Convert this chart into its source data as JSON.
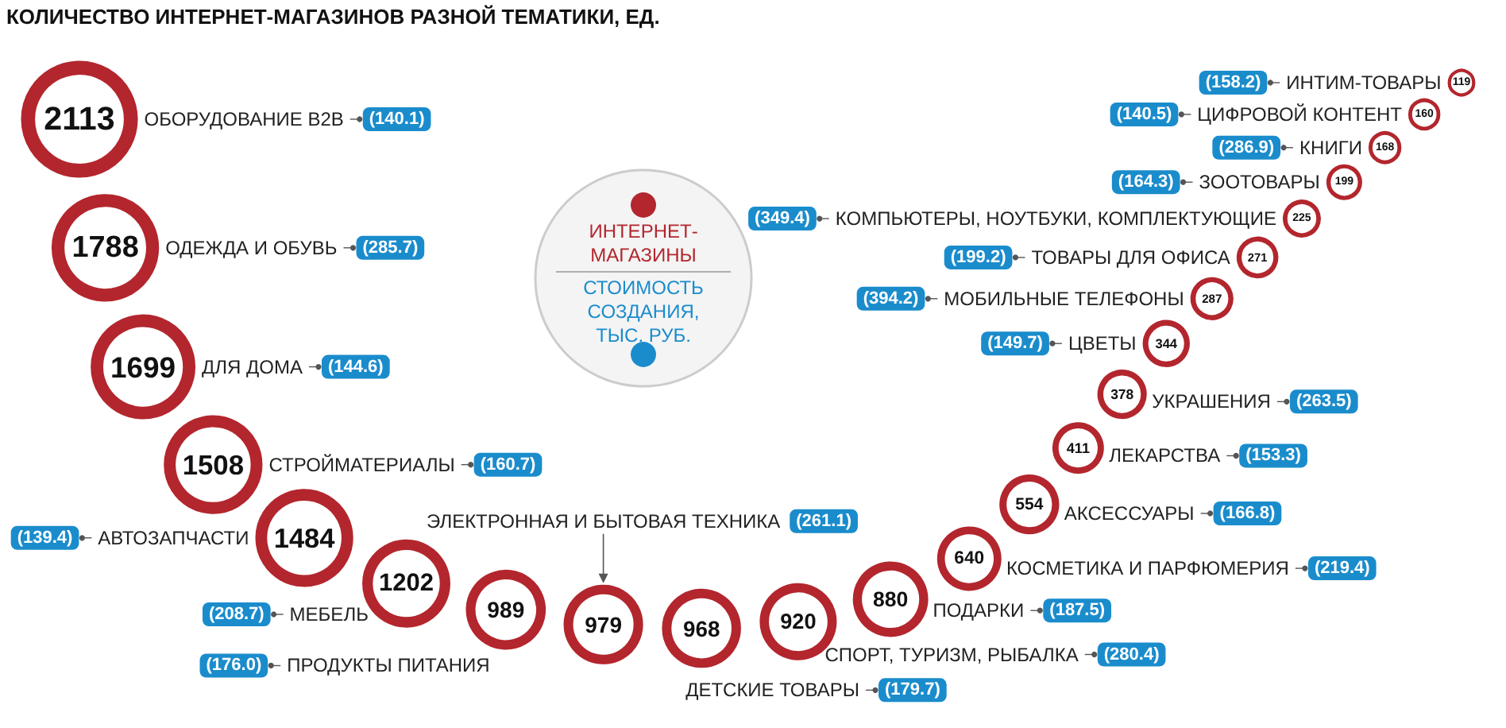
{
  "chart_data": {
    "type": "other",
    "title": "КОЛИЧЕСТВО ИНТЕРНЕТ-МАГАЗИНОВ РАЗНОЙ ТЕМАТИКИ, ЕД.",
    "legend": "top",
    "data_labels": true,
    "categories": [
      "ОБОРУДОВАНИЕ B2B",
      "ОДЕЖДА И ОБУВЬ",
      "ДЛЯ ДОМА",
      "СТРОЙМАТЕРИАЛЫ",
      "АВТОЗАПЧАСТИ",
      "МЕБЕЛЬ",
      "ПРОДУКТЫ ПИТАНИЯ",
      "ЭЛЕКТРОННАЯ И БЫТОВАЯ ТЕХНИКА",
      "ДЕТСКИЕ ТОВАРЫ",
      "СПОРТ, ТУРИЗМ, РЫБАЛКА",
      "ПОДАРКИ",
      "КОСМЕТИКА И ПАРФЮМЕРИЯ",
      "АКСЕССУАРЫ",
      "ЛЕКАРСТВА",
      "УКРАШЕНИЯ",
      "ЦВЕТЫ",
      "МОБИЛЬНЫЕ ТЕЛЕФОНЫ",
      "ТОВАРЫ ДЛЯ ОФИСА",
      "КОМПЬЮТЕРЫ, НОУТБУКИ, КОМПЛЕКТУЮЩИЕ",
      "ЗООТОВАРЫ",
      "КНИГИ",
      "ЦИФРОВОЙ КОНТЕНТ",
      "ИНТИМ-ТОВАРЫ"
    ],
    "series": [
      {
        "name": "ИНТЕРНЕТ-\nМАГАЗИНЫ",
        "color": "#b3262d",
        "values": [
          2113,
          1788,
          1699,
          1508,
          1484,
          1202,
          989,
          979,
          968,
          920,
          880,
          640,
          554,
          411,
          378,
          344,
          287,
          271,
          225,
          199,
          168,
          160,
          119
        ]
      },
      {
        "name": "СТОИМОСТЬ\nСОЗДАНИЯ,\nТЫС. РУБ.",
        "color": "#1a8ccc",
        "values": [
          140.1,
          285.7,
          144.6,
          160.7,
          139.4,
          208.7,
          176.0,
          261.1,
          179.7,
          280.4,
          187.5,
          219.4,
          166.8,
          153.3,
          263.5,
          149.7,
          394.2,
          199.2,
          349.4,
          164.3,
          286.9,
          140.5,
          158.2
        ],
        "value_labels": [
          "(140.1)",
          "(285.7)",
          "(144.6)",
          "(160.7)",
          "(139.4)",
          "(208.7)",
          "(176.0)",
          "(261.1)",
          "(179.7)",
          "(280.4)",
          "(187.5)",
          "(219.4)",
          "(166.8)",
          "(153.3)",
          "(263.5)",
          "(149.7)",
          "(394.2)",
          "(199.2)",
          "(349.4)",
          "(164.3)",
          "(286.9)",
          "(140.5)",
          "(158.2)"
        ]
      }
    ]
  }
}
